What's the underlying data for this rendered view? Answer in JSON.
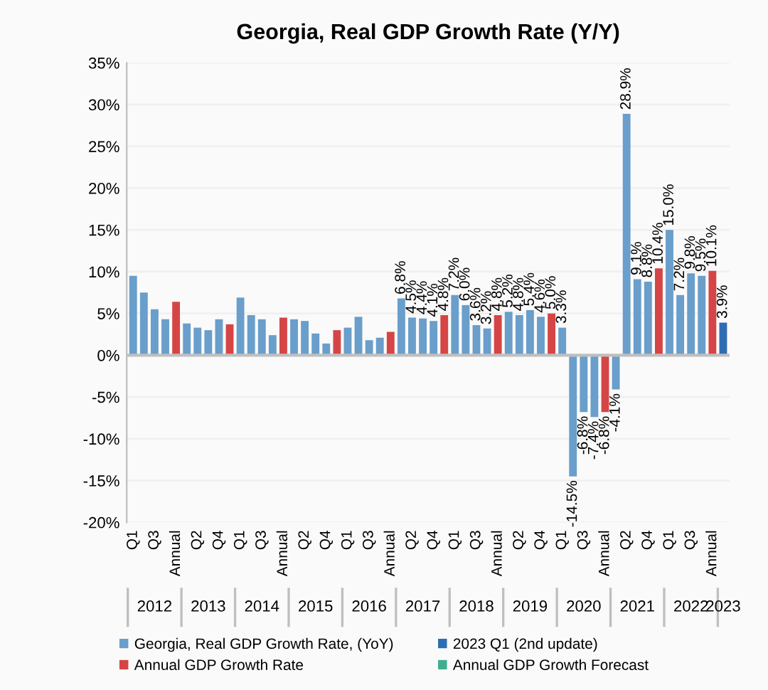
{
  "chart_data": {
    "type": "bar",
    "title": "Georgia, Real GDP Growth Rate (Y/Y)",
    "categories": [
      "Q1",
      null,
      "Q3",
      null,
      "Annual",
      null,
      "Q2",
      null,
      "Q4",
      null,
      "Q1",
      null,
      "Q3",
      null,
      "Annual",
      null,
      "Q2",
      null,
      "Q4",
      null,
      "Q1",
      null,
      "Q3",
      null,
      "Annual",
      null,
      "Q2",
      null,
      "Q4",
      null,
      "Q1",
      null,
      "Q3",
      null,
      "Annual",
      null,
      "Q2",
      null,
      "Q4",
      null,
      "Q1",
      null,
      "Q3",
      null,
      "Annual",
      null,
      "Q2",
      null,
      "Q4",
      null,
      "Q1",
      null,
      "Q3",
      null,
      "Annual",
      null
    ],
    "annotations": [
      "2012",
      "2013",
      "2014",
      "2015",
      "2016",
      "2017",
      "2018",
      "2019",
      "2020",
      "2021",
      "2022",
      "2023"
    ],
    "series": [
      {
        "name": "Georgia, Real GDP Growth Rate, (YoY)",
        "color": "#6a9ecb",
        "values": [
          9.5,
          7.5,
          5.5,
          4.3,
          null,
          3.8,
          3.3,
          3.0,
          4.3,
          null,
          6.9,
          4.8,
          4.3,
          2.4,
          null,
          4.3,
          4.1,
          2.6,
          1.4,
          null,
          3.3,
          4.6,
          1.8,
          2.1,
          null,
          6.8,
          4.5,
          4.4,
          4.1,
          null,
          7.2,
          6.0,
          3.6,
          3.2,
          null,
          5.2,
          4.8,
          5.4,
          4.6,
          null,
          3.3,
          -14.5,
          -6.8,
          -7.4,
          null,
          -4.1,
          28.9,
          9.1,
          8.8,
          null,
          15.0,
          7.2,
          9.8,
          9.5,
          null,
          null
        ],
        "value_labels": [
          null,
          null,
          null,
          null,
          null,
          null,
          null,
          null,
          null,
          null,
          null,
          null,
          null,
          null,
          null,
          null,
          null,
          null,
          null,
          null,
          null,
          null,
          null,
          null,
          null,
          "6.8%",
          "4.5%",
          "4.4%",
          "4.1%",
          null,
          "7.2%",
          "6.0%",
          "3.6%",
          "3.2%",
          null,
          "5.2%",
          "4.8%",
          "5.4%",
          "4.6%",
          null,
          "3.3%",
          "-14.5%",
          "-6.8%",
          "-7.4%",
          null,
          "-4.1%",
          "28.9%",
          "9.1%",
          "8.8%",
          null,
          "15.0%",
          "7.2%",
          "9.8%",
          "9.5%",
          null,
          null
        ]
      },
      {
        "name": "Annual GDP Growth Rate",
        "color": "#d64545",
        "values": [
          null,
          null,
          null,
          null,
          6.4,
          null,
          null,
          null,
          null,
          3.7,
          null,
          null,
          null,
          null,
          4.5,
          null,
          null,
          null,
          null,
          3.0,
          null,
          null,
          null,
          null,
          2.8,
          null,
          null,
          null,
          null,
          4.8,
          null,
          null,
          null,
          null,
          4.8,
          null,
          null,
          null,
          null,
          5.0,
          null,
          null,
          null,
          null,
          -6.8,
          null,
          null,
          null,
          null,
          10.4,
          null,
          null,
          null,
          null,
          10.1,
          null
        ],
        "value_labels": [
          null,
          null,
          null,
          null,
          null,
          null,
          null,
          null,
          null,
          null,
          null,
          null,
          null,
          null,
          null,
          null,
          null,
          null,
          null,
          null,
          null,
          null,
          null,
          null,
          null,
          null,
          null,
          null,
          null,
          "4.8%",
          null,
          null,
          null,
          null,
          "4.8%",
          null,
          null,
          null,
          null,
          "5.0%",
          null,
          null,
          null,
          null,
          "-6.8%",
          null,
          null,
          null,
          null,
          "10.4%",
          null,
          null,
          null,
          null,
          "10.1%",
          null
        ]
      },
      {
        "name": "2023 Q1 (2nd update)",
        "color": "#2e6db4",
        "values": [
          null,
          null,
          null,
          null,
          null,
          null,
          null,
          null,
          null,
          null,
          null,
          null,
          null,
          null,
          null,
          null,
          null,
          null,
          null,
          null,
          null,
          null,
          null,
          null,
          null,
          null,
          null,
          null,
          null,
          null,
          null,
          null,
          null,
          null,
          null,
          null,
          null,
          null,
          null,
          null,
          null,
          null,
          null,
          null,
          null,
          null,
          null,
          null,
          null,
          null,
          null,
          null,
          null,
          null,
          null,
          3.9
        ],
        "value_labels": [
          null,
          null,
          null,
          null,
          null,
          null,
          null,
          null,
          null,
          null,
          null,
          null,
          null,
          null,
          null,
          null,
          null,
          null,
          null,
          null,
          null,
          null,
          null,
          null,
          null,
          null,
          null,
          null,
          null,
          null,
          null,
          null,
          null,
          null,
          null,
          null,
          null,
          null,
          null,
          null,
          null,
          null,
          null,
          null,
          null,
          null,
          null,
          null,
          null,
          null,
          null,
          null,
          null,
          null,
          null,
          "3.9%"
        ]
      },
      {
        "name": "Annual GDP Growth Forecast",
        "color": "#3fae8f",
        "values": [
          null,
          null,
          null,
          null,
          null,
          null,
          null,
          null,
          null,
          null,
          null,
          null,
          null,
          null,
          null,
          null,
          null,
          null,
          null,
          null,
          null,
          null,
          null,
          null,
          null,
          null,
          null,
          null,
          null,
          null,
          null,
          null,
          null,
          null,
          null,
          null,
          null,
          null,
          null,
          null,
          null,
          null,
          null,
          null,
          null,
          null,
          null,
          null,
          null,
          null,
          null,
          null,
          null,
          null,
          null,
          null
        ]
      }
    ],
    "ylim": [
      -20,
      35
    ],
    "yticks": [
      {
        "value": -20,
        "label": "-20%"
      },
      {
        "value": -15,
        "label": "-15%"
      },
      {
        "value": -10,
        "label": "-10%"
      },
      {
        "value": -5,
        "label": "-5%"
      },
      {
        "value": 0,
        "label": "0%"
      },
      {
        "value": 5,
        "label": "5%"
      },
      {
        "value": 10,
        "label": "10%"
      },
      {
        "value": 15,
        "label": "15%"
      },
      {
        "value": 20,
        "label": "20%"
      },
      {
        "value": 25,
        "label": "25%"
      },
      {
        "value": 30,
        "label": "30%"
      },
      {
        "value": 35,
        "label": "35%"
      }
    ],
    "grid": "y",
    "legend": "bottom"
  }
}
